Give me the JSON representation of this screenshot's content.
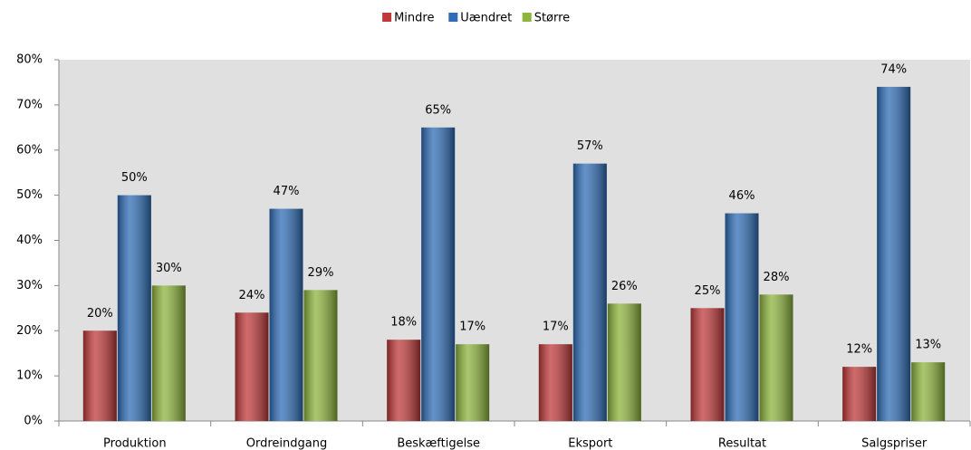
{
  "chart_data": {
    "type": "bar",
    "categories": [
      "Produktion",
      "Ordreindgang",
      "Beskæftigelse",
      "Eksport",
      "Resultat",
      "Salgspriser"
    ],
    "series": [
      {
        "name": "Mindre",
        "color": "#c0393a",
        "values": [
          20,
          24,
          18,
          17,
          25,
          12
        ],
        "value_labels": [
          "20%",
          "24%",
          "18%",
          "17%",
          "25%",
          "12%"
        ]
      },
      {
        "name": "Uændret",
        "color": "#2f6db6",
        "values": [
          50,
          47,
          65,
          57,
          46,
          74
        ],
        "value_labels": [
          "50%",
          "47%",
          "65%",
          "57%",
          "46%",
          "74%"
        ]
      },
      {
        "name": "Større",
        "color": "#8db43c",
        "values": [
          30,
          29,
          17,
          26,
          28,
          13
        ],
        "value_labels": [
          "30%",
          "29%",
          "17%",
          "26%",
          "28%",
          "13%"
        ]
      }
    ],
    "ylim": [
      0,
      80
    ],
    "yticks": [
      {
        "value": 0,
        "label": "0%"
      },
      {
        "value": 10,
        "label": "10%"
      },
      {
        "value": 20,
        "label": "20%"
      },
      {
        "value": 30,
        "label": "30%"
      },
      {
        "value": 40,
        "label": "40%"
      },
      {
        "value": 50,
        "label": "50%"
      },
      {
        "value": 60,
        "label": "60%"
      },
      {
        "value": 70,
        "label": "70%"
      },
      {
        "value": 80,
        "label": "80%"
      }
    ],
    "legend": "top"
  }
}
